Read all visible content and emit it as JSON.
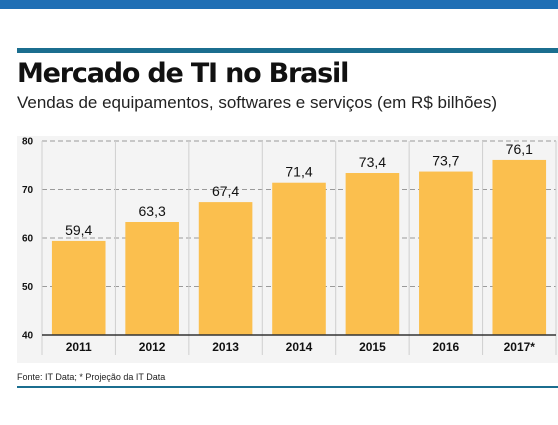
{
  "title": "Mercado de TI no Brasil",
  "subtitle": "Vendas de equipamentos, softwares e serviços (em R$ bilhões)",
  "source": "Fonte: IT Data; * Projeção da IT Data",
  "colors": {
    "bar": "#fbbf4e",
    "accent": "#1b6e8f",
    "top_band": "#1f6fb5"
  },
  "chart_data": {
    "type": "bar",
    "title": "Mercado de TI no Brasil",
    "subtitle": "Vendas de equipamentos, softwares e serviços (em R$ bilhões)",
    "categories": [
      "2011",
      "2012",
      "2013",
      "2014",
      "2015",
      "2016",
      "2017*"
    ],
    "values": [
      59.4,
      63.3,
      67.4,
      71.4,
      73.4,
      73.7,
      76.1
    ],
    "data_labels": [
      "59,4",
      "63,3",
      "67,4",
      "71,4",
      "73,4",
      "73,7",
      "76,1"
    ],
    "ylim": [
      40,
      80
    ],
    "yticks": [
      40,
      50,
      60,
      70,
      80
    ],
    "xlabel": "",
    "ylabel": "",
    "grid": true,
    "legend": "none"
  }
}
